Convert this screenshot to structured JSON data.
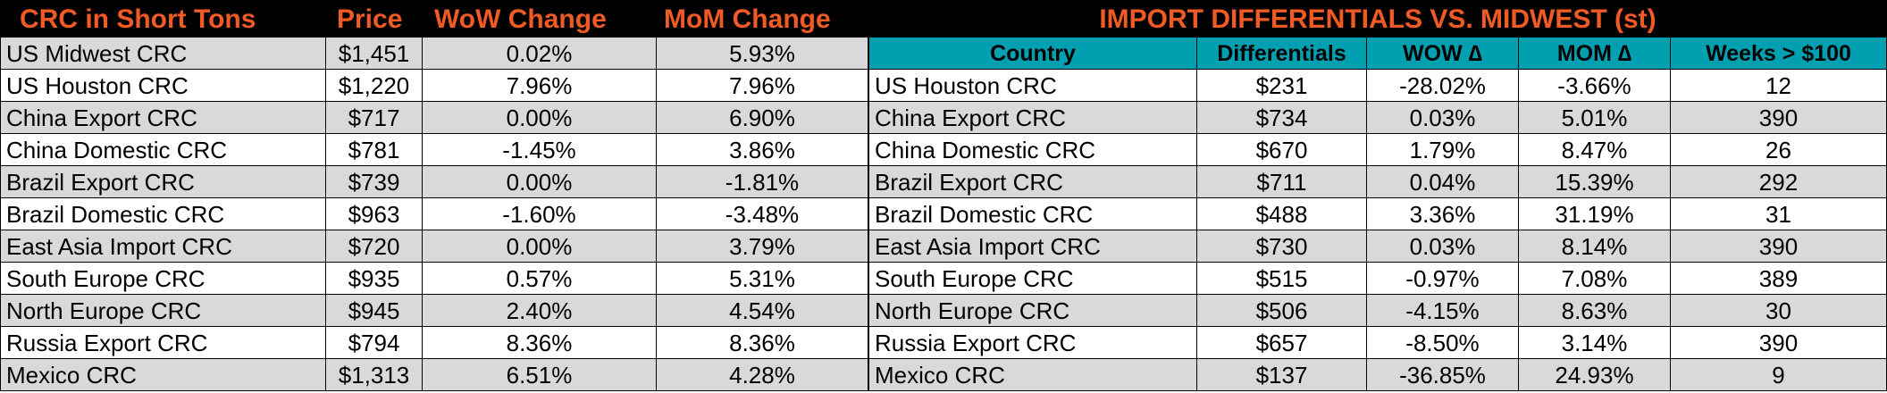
{
  "left_table": {
    "headers": {
      "name": "CRC in Short Tons",
      "price": "Price",
      "wow": "WoW Change",
      "mom": "MoM Change"
    },
    "rows": [
      {
        "name": "US Midwest CRC",
        "price": "$1,451",
        "wow": "0.02%",
        "mom": "5.93%"
      },
      {
        "name": "US Houston CRC",
        "price": "$1,220",
        "wow": "7.96%",
        "mom": "7.96%"
      },
      {
        "name": "China Export CRC",
        "price": "$717",
        "wow": "0.00%",
        "mom": "6.90%"
      },
      {
        "name": "China Domestic CRC",
        "price": "$781",
        "wow": "-1.45%",
        "mom": "3.86%"
      },
      {
        "name": "Brazil Export CRC",
        "price": "$739",
        "wow": "0.00%",
        "mom": "-1.81%"
      },
      {
        "name": "Brazil Domestic CRC",
        "price": "$963",
        "wow": "-1.60%",
        "mom": "-3.48%"
      },
      {
        "name": "East Asia Import CRC",
        "price": "$720",
        "wow": "0.00%",
        "mom": "3.79%"
      },
      {
        "name": "South Europe CRC",
        "price": "$935",
        "wow": "0.57%",
        "mom": "5.31%"
      },
      {
        "name": "North Europe CRC",
        "price": "$945",
        "wow": "2.40%",
        "mom": "4.54%"
      },
      {
        "name": "Russia Export CRC",
        "price": "$794",
        "wow": "8.36%",
        "mom": "8.36%"
      },
      {
        "name": "Mexico CRC",
        "price": "$1,313",
        "wow": "6.51%",
        "mom": "4.28%"
      }
    ]
  },
  "right_table": {
    "title": "IMPORT DIFFERENTIALS VS. MIDWEST (st)",
    "headers": {
      "country": "Country",
      "diff": "Differentials",
      "wow": "WOW ∆",
      "mom": "MOM ∆",
      "weeks": "Weeks > $100"
    },
    "rows": [
      {
        "country": "US Houston CRC",
        "diff": "$231",
        "wow": "-28.02%",
        "mom": "-3.66%",
        "weeks": "12"
      },
      {
        "country": "China Export CRC",
        "diff": "$734",
        "wow": "0.03%",
        "mom": "5.01%",
        "weeks": "390"
      },
      {
        "country": "China Domestic CRC",
        "diff": "$670",
        "wow": "1.79%",
        "mom": "8.47%",
        "weeks": "26"
      },
      {
        "country": "Brazil Export CRC",
        "diff": "$711",
        "wow": "0.04%",
        "mom": "15.39%",
        "weeks": "292"
      },
      {
        "country": "Brazil Domestic CRC",
        "diff": "$488",
        "wow": "3.36%",
        "mom": "31.19%",
        "weeks": "31"
      },
      {
        "country": "East Asia Import CRC",
        "diff": "$730",
        "wow": "0.03%",
        "mom": "8.14%",
        "weeks": "390"
      },
      {
        "country": "South Europe CRC",
        "diff": "$515",
        "wow": "-0.97%",
        "mom": "7.08%",
        "weeks": "389"
      },
      {
        "country": "North Europe CRC",
        "diff": "$506",
        "wow": "-4.15%",
        "mom": "8.63%",
        "weeks": "30"
      },
      {
        "country": "Russia Export CRC",
        "diff": "$657",
        "wow": "-8.50%",
        "mom": "3.14%",
        "weeks": "390"
      },
      {
        "country": "Mexico CRC",
        "diff": "$137",
        "wow": "-36.85%",
        "mom": "24.93%",
        "weeks": "9"
      }
    ]
  },
  "colors": {
    "header_bg": "#000000",
    "header_text": "#f05a24",
    "column_header_bg": "#00a0b0",
    "row_grey": "#d9d9d9",
    "row_white": "#ffffff"
  }
}
